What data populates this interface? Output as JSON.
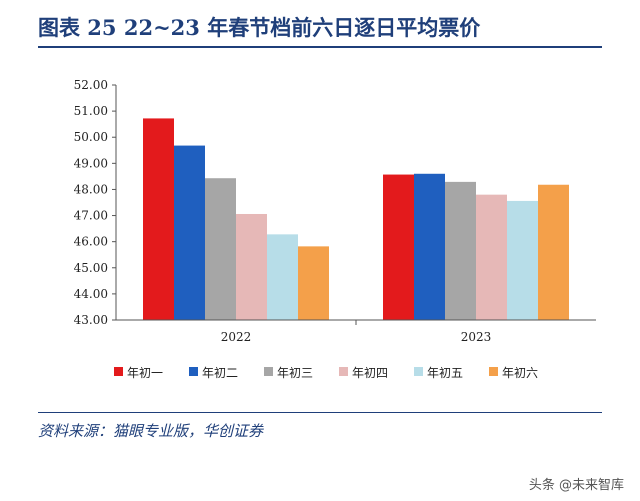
{
  "title": "图表  25    22~23 年春节档前六日逐日平均票价",
  "source": "资料来源：猫眼专业版，华创证券",
  "watermark": "头条 @未来智库",
  "chart_data": {
    "type": "bar",
    "categories": [
      "2022",
      "2023"
    ],
    "ylim": [
      43.0,
      52.0
    ],
    "yticks": [
      "52.00",
      "51.00",
      "50.00",
      "49.00",
      "48.00",
      "47.00",
      "46.00",
      "45.00",
      "44.00",
      "43.00"
    ],
    "series": [
      {
        "name": "年初一",
        "color": "#e31a1c",
        "values": [
          50.72,
          48.57
        ]
      },
      {
        "name": "年初二",
        "color": "#1f5fbf",
        "values": [
          49.68,
          48.6
        ]
      },
      {
        "name": "年初三",
        "color": "#a6a6a6",
        "values": [
          48.43,
          48.29
        ]
      },
      {
        "name": "年初四",
        "color": "#e6b8b7",
        "values": [
          47.06,
          47.8
        ]
      },
      {
        "name": "年初五",
        "color": "#b7dde8",
        "values": [
          46.28,
          47.56
        ]
      },
      {
        "name": "年初六",
        "color": "#f4a04a",
        "values": [
          45.82,
          48.18
        ]
      }
    ],
    "legend_position": "bottom",
    "grid": false
  }
}
